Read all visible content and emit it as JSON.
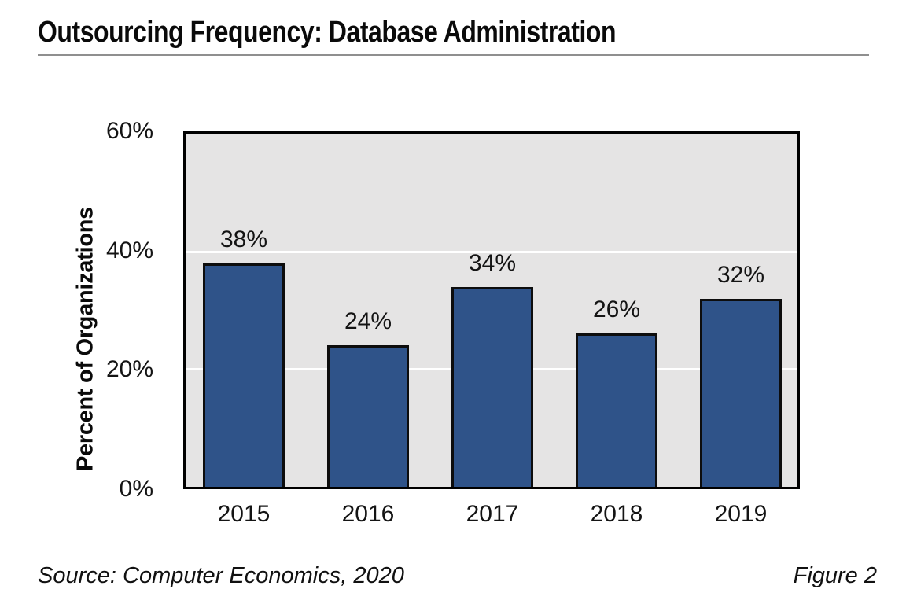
{
  "title": "Outsourcing Frequency: Database Administration",
  "source": "Source: Computer Economics, 2020",
  "figure_label": "Figure 2",
  "colors": {
    "bar_fill": "#2f5389",
    "bar_border": "#0d0d0d",
    "plot_background": "#e5e4e4",
    "plot_border": "#000000",
    "gridline": "#ffffff",
    "title_rule": "#8f8f8f"
  },
  "chart_data": {
    "type": "bar",
    "title": "Outsourcing Frequency: Database Administration",
    "categories": [
      "2015",
      "2016",
      "2017",
      "2018",
      "2019"
    ],
    "values": [
      38,
      24,
      34,
      26,
      32
    ],
    "data_labels": [
      "38%",
      "24%",
      "34%",
      "26%",
      "32%"
    ],
    "xlabel": "",
    "ylabel": "Percent of Organizations",
    "ylim": [
      0,
      60
    ],
    "ytick_values": [
      0,
      20,
      40,
      60
    ],
    "yticks": [
      "0%",
      "20%",
      "40%",
      "60%"
    ],
    "grid": "horizontal white gridlines at 20% and 40%",
    "legend": "none",
    "series": [
      {
        "name": "Percent of Organizations",
        "values": [
          38,
          24,
          34,
          26,
          32
        ]
      }
    ]
  }
}
